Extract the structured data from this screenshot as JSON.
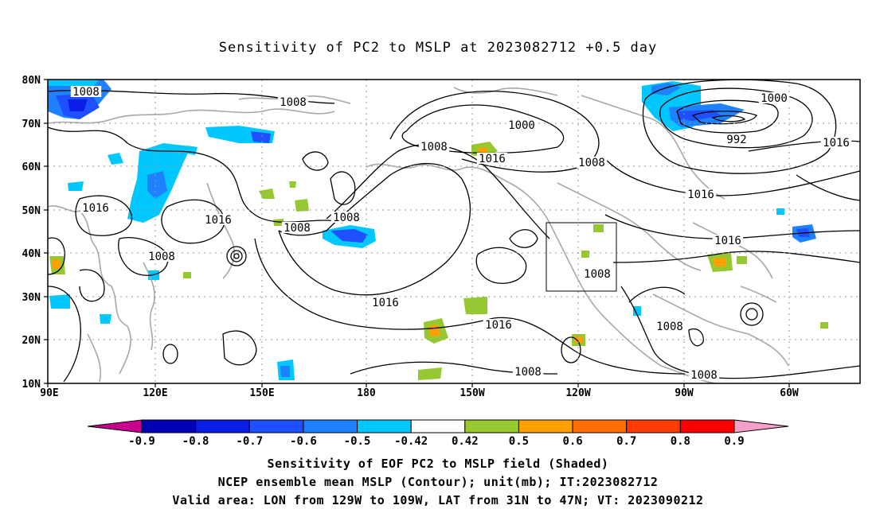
{
  "title": "Sensitivity of PC2 to MSLP at 2023082712 +0.5 day",
  "lat_labels": [
    "80N",
    "70N",
    "60N",
    "50N",
    "40N",
    "30N",
    "20N",
    "10N"
  ],
  "lon_labels": [
    "90E",
    "120E",
    "150E",
    "180",
    "150W",
    "120W",
    "90W",
    "60W"
  ],
  "contour_labels": [
    {
      "text": "1008"
    },
    {
      "text": "1008"
    },
    {
      "text": "1000"
    },
    {
      "text": "1008"
    },
    {
      "text": "1016"
    },
    {
      "text": "1008"
    },
    {
      "text": "1000"
    },
    {
      "text": "992"
    },
    {
      "text": "1016"
    },
    {
      "text": "1016"
    },
    {
      "text": "1016"
    },
    {
      "text": "1008"
    },
    {
      "text": "1008"
    },
    {
      "text": "1016"
    },
    {
      "text": "1008"
    },
    {
      "text": "1016"
    },
    {
      "text": "1008"
    },
    {
      "text": "1016"
    },
    {
      "text": "1016"
    },
    {
      "text": "1008"
    },
    {
      "text": "1008"
    },
    {
      "text": "1008"
    }
  ],
  "colorbar": {
    "ticks": [
      "-0.9",
      "-0.8",
      "-0.7",
      "-0.6",
      "-0.5",
      "-0.42",
      "0.42",
      "0.5",
      "0.6",
      "0.7",
      "0.8",
      "0.9"
    ],
    "colors": [
      "#c8008c",
      "#0000b4",
      "#0a1ee6",
      "#1e50ff",
      "#1e82ff",
      "#00c8ff",
      "#ffffff",
      "#96c832",
      "#ffa000",
      "#ff6e00",
      "#ff3c00",
      "#ff0000",
      "#f5a0c8"
    ]
  },
  "captions": [
    "Sensitivity of EOF PC2 to MSLP field (Shaded)",
    "NCEP ensemble mean MSLP (Contour); unit(mb); IT:2023082712",
    "Valid area: LON from 129W to 109W, LAT from 31N to 47N; VT: 2023090212"
  ]
}
